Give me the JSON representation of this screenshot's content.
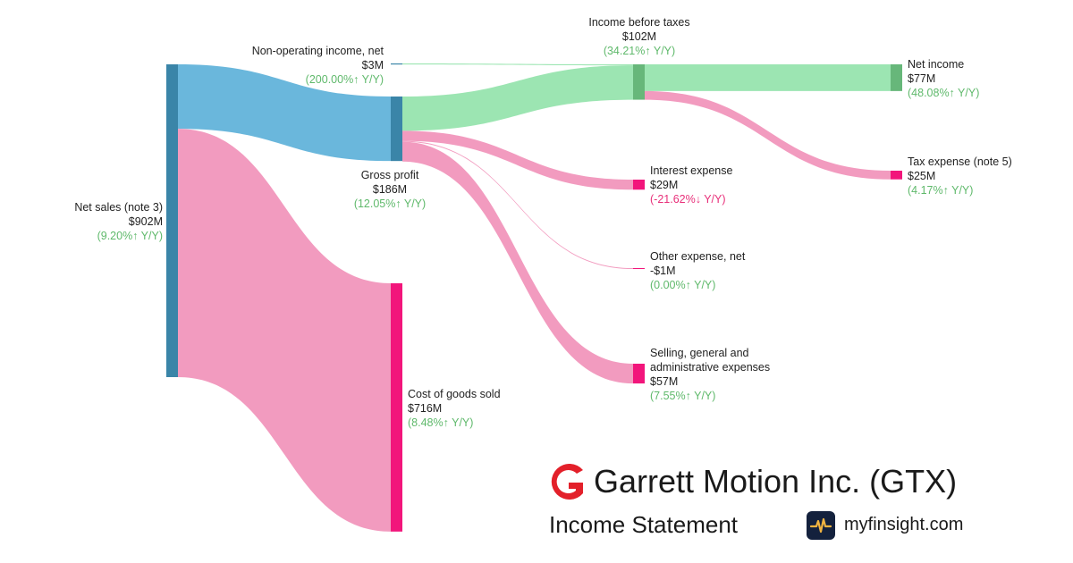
{
  "chart_data": {
    "type": "sankey",
    "title": "",
    "nodes": [
      {
        "id": "net_sales",
        "name": "Net sales (note 3)",
        "value_label": "$902M",
        "change": "(9.20%↑ Y/Y)",
        "change_dir": "up",
        "value": 902
      },
      {
        "id": "non_op",
        "name": "Non-operating income, net",
        "value_label": "$3M",
        "change": "(200.00%↑ Y/Y)",
        "change_dir": "up",
        "value": 3
      },
      {
        "id": "gross_profit",
        "name": "Gross profit",
        "value_label": "$186M",
        "change": "(12.05%↑ Y/Y)",
        "change_dir": "up",
        "value": 186
      },
      {
        "id": "cogs",
        "name": "Cost of goods sold",
        "value_label": "$716M",
        "change": "(8.48%↑ Y/Y)",
        "change_dir": "up",
        "value": 716
      },
      {
        "id": "ibt",
        "name": "Income before taxes",
        "value_label": "$102M",
        "change": "(34.21%↑ Y/Y)",
        "change_dir": "up",
        "value": 102
      },
      {
        "id": "interest",
        "name": "Interest expense",
        "value_label": "$29M",
        "change": "(-21.62%↓ Y/Y)",
        "change_dir": "down",
        "value": 29
      },
      {
        "id": "other",
        "name": "Other expense, net",
        "value_label": "-$1M",
        "change": "(0.00%↑ Y/Y)",
        "change_dir": "up",
        "value": -1
      },
      {
        "id": "sga",
        "name": "Selling, general and administrative expenses",
        "value_label": "$57M",
        "change": "(7.55%↑ Y/Y)",
        "change_dir": "up",
        "value": 57
      },
      {
        "id": "net_income",
        "name": "Net income",
        "value_label": "$77M",
        "change": "(48.08%↑ Y/Y)",
        "change_dir": "up",
        "value": 77
      },
      {
        "id": "tax",
        "name": "Tax expense (note 5)",
        "value_label": "$25M",
        "change": "(4.17%↑ Y/Y)",
        "change_dir": "up",
        "value": 25
      }
    ],
    "links": [
      {
        "source": "net_sales",
        "target": "gross_profit",
        "value": 186
      },
      {
        "source": "net_sales",
        "target": "cogs",
        "value": 716
      },
      {
        "source": "non_op",
        "target": "ibt",
        "value": 3
      },
      {
        "source": "gross_profit",
        "target": "ibt",
        "value": 99
      },
      {
        "source": "gross_profit",
        "target": "interest",
        "value": 29
      },
      {
        "source": "gross_profit",
        "target": "other",
        "value": 1
      },
      {
        "source": "gross_profit",
        "target": "sga",
        "value": 57
      },
      {
        "source": "ibt",
        "target": "net_income",
        "value": 77
      },
      {
        "source": "ibt",
        "target": "tax",
        "value": 25
      }
    ],
    "colors": {
      "revenue_node": "#3a85a8",
      "revenue_link": "#6ab7dc",
      "profit_node": "#67b77a",
      "profit_link": "#9ce5b2",
      "expense_node": "#f2157b",
      "expense_link": "#f29bbf",
      "change_up": "#5fb96b",
      "change_down": "#e8307a"
    }
  },
  "brand": {
    "company": "Garrett Motion Inc. (GTX)",
    "subtitle": "Income Statement",
    "site": "myfinsight.com",
    "logo_color": "#e3202a"
  }
}
